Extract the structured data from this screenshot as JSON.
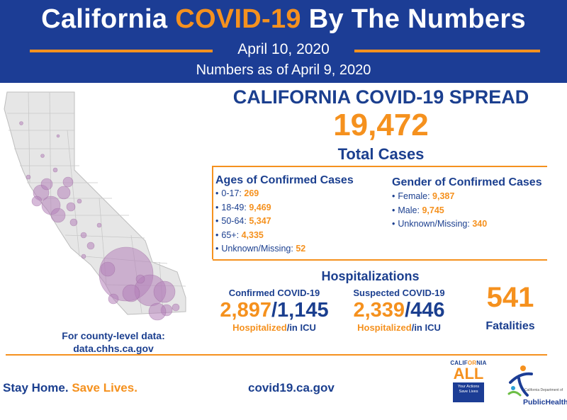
{
  "header": {
    "title_pre": "California ",
    "title_highlight": "COVID-19",
    "title_post": " By The Numbers",
    "date": "April 10, 2020",
    "as_of": "Numbers as of April 9, 2020"
  },
  "spread": {
    "title": "CALIFORNIA COVID-19 SPREAD",
    "total_cases": "19,472",
    "total_label": "Total Cases"
  },
  "ages": {
    "title": "Ages of Confirmed Cases",
    "items": [
      {
        "label": "0-17:",
        "value": "269"
      },
      {
        "label": "18-49:",
        "value": "9,469"
      },
      {
        "label": "50-64:",
        "value": "5,347"
      },
      {
        "label": "65+:",
        "value": "4,335"
      },
      {
        "label": "Unknown/Missing:",
        "value": "52"
      }
    ]
  },
  "gender": {
    "title": "Gender of Confirmed Cases",
    "items": [
      {
        "label": "Female:",
        "value": "9,387"
      },
      {
        "label": "Male:",
        "value": "9,745"
      },
      {
        "label": "Unknown/Missing:",
        "value": "340"
      }
    ]
  },
  "hospitalizations": {
    "title": "Hospitalizations",
    "confirmed": {
      "label": "Confirmed COVID-19",
      "hospitalized": "2,897",
      "icu": "1,145",
      "sub_hosp": "Hospitalized",
      "sub_icu": "/in ICU"
    },
    "suspected": {
      "label": "Suspected COVID-19",
      "hospitalized": "2,339",
      "icu": "446",
      "sub_hosp": "Hospitalized",
      "sub_icu": "/in ICU"
    }
  },
  "fatalities": {
    "value": "541",
    "label": "Fatalities"
  },
  "county_note": {
    "line1": "For county-level data:",
    "line2": "data.chhs.ca.gov"
  },
  "footer": {
    "slogan_a": "Stay Home. ",
    "slogan_b": "Save Lives.",
    "url": "covid19.ca.gov"
  },
  "logos": {
    "ca_top_a": "CALIF",
    "ca_top_b": "OR",
    "ca_top_c": "NIA",
    "ca_all": "ALL",
    "ca_box_1": "Your Actions",
    "ca_box_2": "Save Lives",
    "cdph_small": "California Department of",
    "cdph_name": "PublicHealth"
  },
  "colors": {
    "navy": "#1c3d95",
    "orange": "#f5911e",
    "bubble": "#b581b9",
    "map_fill": "#e6e6e6"
  }
}
